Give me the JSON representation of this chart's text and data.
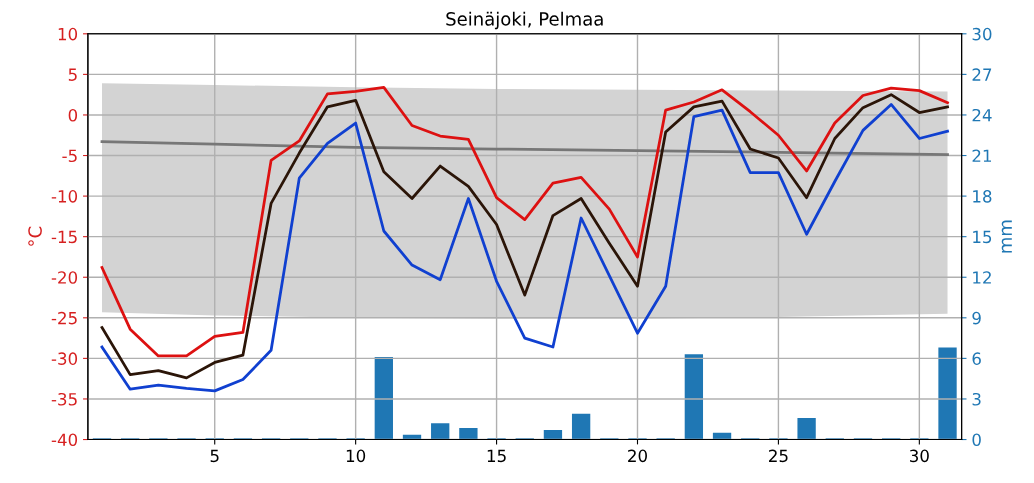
{
  "chart_data": {
    "type": "line",
    "title": "Seinäjoki, Pelmaa",
    "ylabel": "°C",
    "y2label": "mm",
    "xlim": [
      0.5,
      31.5
    ],
    "xticks": [
      5,
      10,
      15,
      20,
      25,
      30
    ],
    "ylim": [
      -40,
      10
    ],
    "yticks": [
      -40,
      -35,
      -30,
      -25,
      -20,
      -15,
      -10,
      -5,
      0,
      5,
      10
    ],
    "y2lim": [
      0,
      30
    ],
    "y2ticks": [
      0,
      3,
      6,
      9,
      12,
      15,
      18,
      21,
      24,
      27,
      30
    ],
    "grid": true,
    "legend": false,
    "marker": "none",
    "line_style": "solid",
    "x": [
      1,
      2,
      3,
      4,
      5,
      6,
      7,
      8,
      9,
      10,
      11,
      12,
      13,
      14,
      15,
      16,
      17,
      18,
      19,
      20,
      21,
      22,
      23,
      24,
      25,
      26,
      27,
      28,
      29,
      30,
      31
    ],
    "series": [
      {
        "type": "bar",
        "axis": "y2",
        "color": "#1f77b4",
        "values": [
          0.1,
          0.1,
          0.1,
          0.1,
          0.1,
          0.1,
          0.1,
          0.1,
          0.1,
          0.1,
          6.1,
          0.35,
          1.2,
          0.85,
          0.1,
          0.1,
          0.7,
          1.9,
          0.1,
          0.1,
          0.1,
          6.3,
          0.5,
          0.1,
          0.1,
          1.6,
          0.1,
          0.1,
          0.1,
          0.1,
          6.8
        ]
      },
      {
        "color": "#777777",
        "x": [
          1,
          5,
          10,
          15,
          20,
          25,
          31
        ],
        "values": [
          -3.3,
          -3.6,
          -4.0,
          -4.2,
          -4.4,
          -4.6,
          -4.9
        ],
        "lower": [
          -24.3,
          -24.7,
          -25.0,
          -25.1,
          -25.1,
          -24.9,
          -24.5
        ],
        "upper": [
          3.9,
          3.7,
          3.4,
          3.2,
          3.1,
          3.0,
          2.9
        ]
      },
      {
        "color": "#dd1111",
        "values": [
          -18.8,
          -26.4,
          -29.7,
          -29.7,
          -27.3,
          -26.8,
          -5.6,
          -3.2,
          2.6,
          2.9,
          3.4,
          -1.3,
          -2.6,
          -3.0,
          -10.2,
          -12.9,
          -8.4,
          -7.7,
          -11.6,
          -17.5,
          0.6,
          1.6,
          3.1,
          0.4,
          -2.5,
          -6.9,
          -1.0,
          2.4,
          3.3,
          3.0,
          1.5
        ]
      },
      {
        "color": "#2b1508",
        "values": [
          -26.2,
          -32.0,
          -31.5,
          -32.4,
          -30.5,
          -29.6,
          -10.9,
          -4.7,
          1.0,
          1.8,
          -7.0,
          -10.3,
          -6.3,
          -8.8,
          -13.5,
          -22.2,
          -12.4,
          -10.3,
          -15.8,
          -21.1,
          -2.1,
          1.0,
          1.7,
          -4.2,
          -5.3,
          -10.2,
          -2.9,
          0.9,
          2.5,
          0.3,
          1.0
        ]
      },
      {
        "color": "#1040d0",
        "values": [
          -28.6,
          -33.8,
          -33.3,
          -33.7,
          -34.0,
          -32.6,
          -29.0,
          -7.8,
          -3.5,
          -1.0,
          -14.3,
          -18.5,
          -20.3,
          -10.3,
          -20.5,
          -27.5,
          -28.6,
          -12.7,
          -19.8,
          -26.9,
          -21.1,
          -0.2,
          0.6,
          -7.1,
          -7.1,
          -14.7,
          -8.2,
          -1.9,
          1.3,
          -2.9,
          -2.0
        ]
      }
    ]
  }
}
